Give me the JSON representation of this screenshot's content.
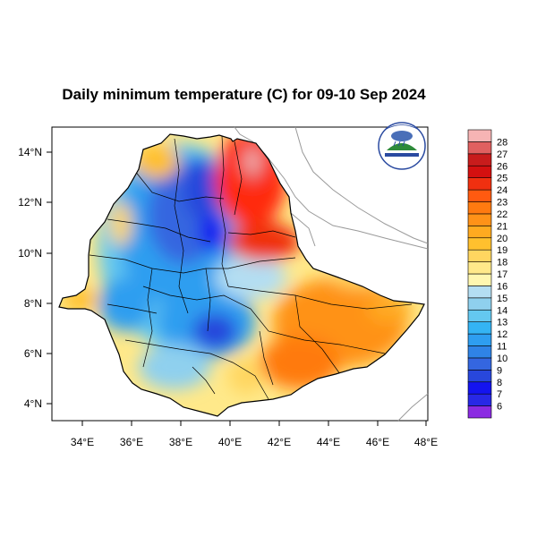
{
  "title": "Daily minimum temperature (C) for 09-10 Sep 2024",
  "map": {
    "x_ticks": [
      "34°E",
      "36°E",
      "38°E",
      "40°E",
      "42°E",
      "44°E",
      "46°E",
      "48°E"
    ],
    "y_ticks": [
      "14°N",
      "12°N",
      "10°N",
      "8°N",
      "6°N",
      "4°N"
    ],
    "x_range": [
      33.0,
      48.0
    ],
    "y_range": [
      3.2,
      14.9
    ]
  },
  "colorbar": {
    "levels": [
      "6",
      "7",
      "8",
      "9",
      "10",
      "11",
      "12",
      "13",
      "14",
      "15",
      "16",
      "17",
      "18",
      "19",
      "20",
      "21",
      "22",
      "23",
      "24",
      "25",
      "26",
      "27",
      "28"
    ],
    "colors": [
      "#8b2be2",
      "#2828e6",
      "#1414f0",
      "#2847dc",
      "#3466e0",
      "#2f83e6",
      "#2e9ef0",
      "#34b4f4",
      "#64c8f0",
      "#8fd0ee",
      "#b4def2",
      "#fff7b0",
      "#ffe98a",
      "#ffd660",
      "#ffc02e",
      "#ffaa20",
      "#ff9218",
      "#ff7a10",
      "#ff5a10",
      "#f03010",
      "#d41010",
      "#c81c1c",
      "#e06060",
      "#f6b4b4"
    ]
  },
  "logo": {
    "top_text": "ኢትዮጵያ ሚቲዎሮሎጂ ኢንስቲትዩት",
    "bottom_text": "Ethiopian Meteorology Institute"
  }
}
